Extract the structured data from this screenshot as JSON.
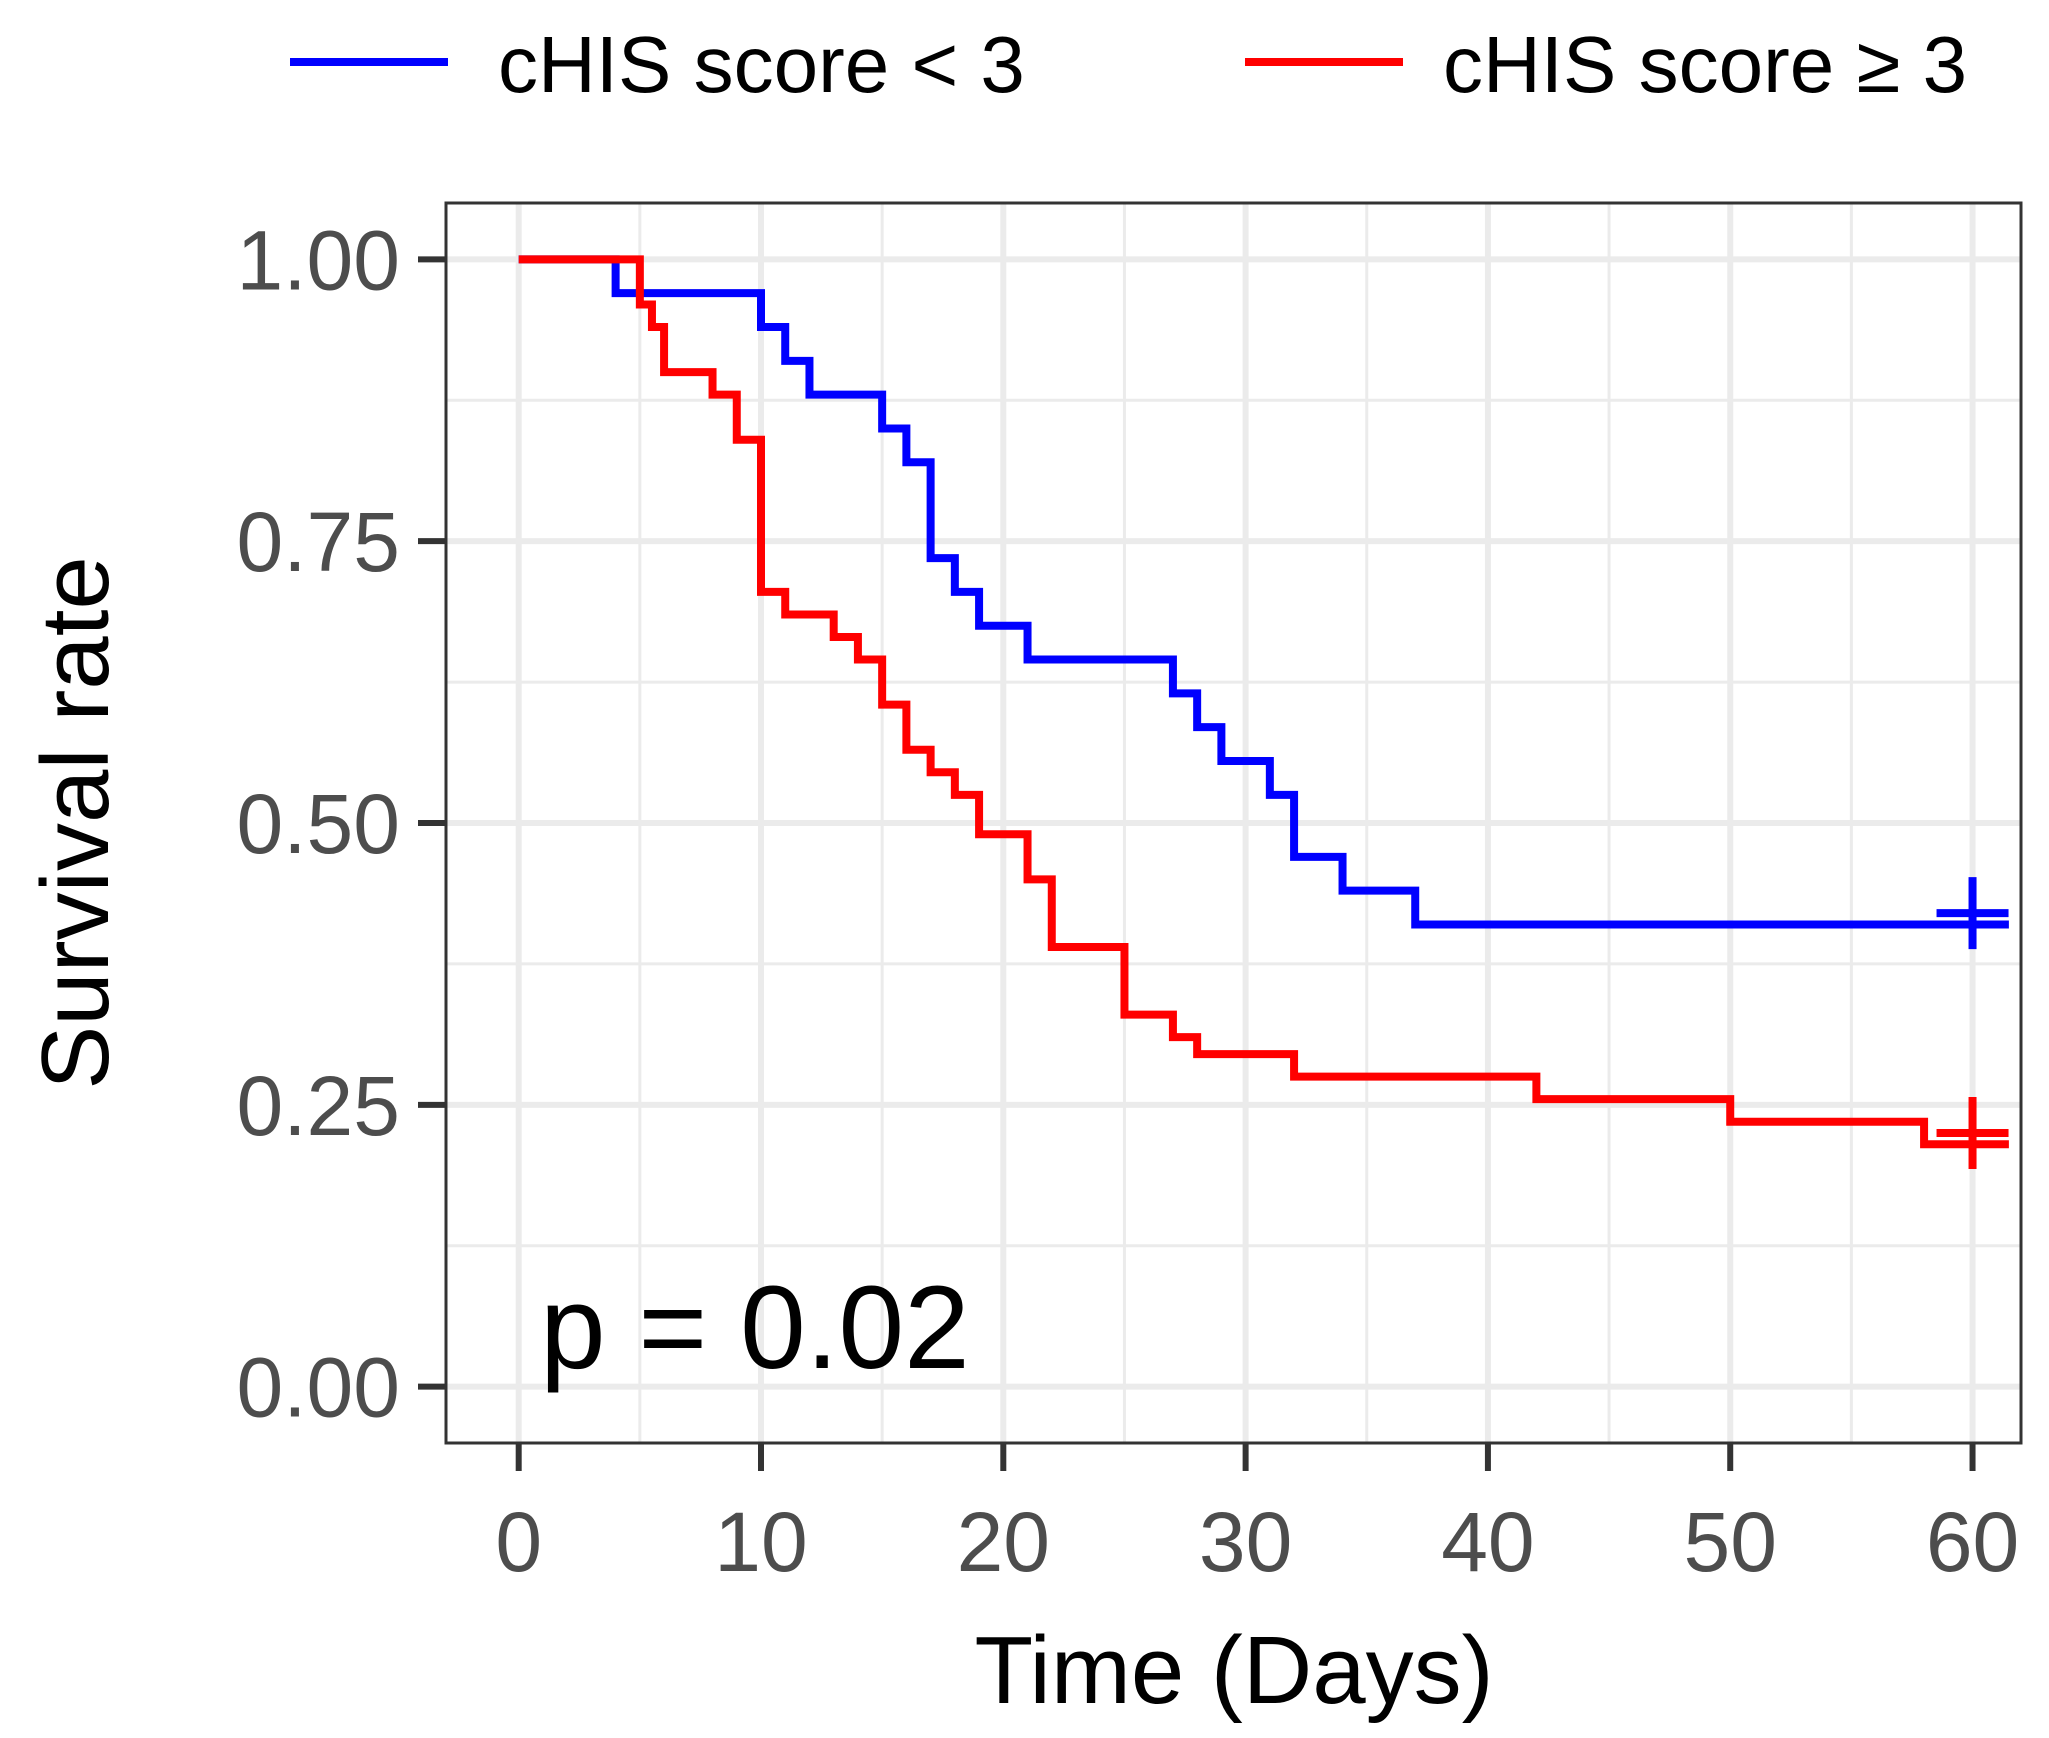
{
  "chart_data": {
    "type": "line",
    "subtype": "kaplan-meier step curve",
    "title": "",
    "xlabel": "Time (Days)",
    "ylabel": "Survival rate",
    "xlim": [
      -3,
      62
    ],
    "ylim": [
      -0.05,
      1.05
    ],
    "x_ticks": [
      0,
      10,
      20,
      30,
      40,
      50,
      60
    ],
    "x_tick_labels": [
      "0",
      "10",
      "20",
      "30",
      "40",
      "50",
      "60"
    ],
    "y_ticks": [
      0,
      0.25,
      0.5,
      0.75,
      1.0
    ],
    "y_tick_labels": [
      "0.00",
      "0.25",
      "0.50",
      "0.75",
      "1.00"
    ],
    "grid": true,
    "legend_position": "top",
    "annotation": "p = 0.02",
    "series": [
      {
        "name": "cHIS score < 3",
        "color": "#0000ff",
        "censor_marks": [
          {
            "x": 60,
            "y": 0.42
          }
        ],
        "steps": [
          {
            "x": 0,
            "y": 1.0
          },
          {
            "x": 4,
            "y": 0.97
          },
          {
            "x": 10,
            "y": 0.94
          },
          {
            "x": 11,
            "y": 0.91
          },
          {
            "x": 12,
            "y": 0.88
          },
          {
            "x": 15,
            "y": 0.85
          },
          {
            "x": 16,
            "y": 0.82
          },
          {
            "x": 17,
            "y": 0.735
          },
          {
            "x": 18,
            "y": 0.705
          },
          {
            "x": 19,
            "y": 0.675
          },
          {
            "x": 21,
            "y": 0.645
          },
          {
            "x": 27,
            "y": 0.615
          },
          {
            "x": 28,
            "y": 0.585
          },
          {
            "x": 29,
            "y": 0.555
          },
          {
            "x": 31,
            "y": 0.525
          },
          {
            "x": 32,
            "y": 0.47
          },
          {
            "x": 34,
            "y": 0.44
          },
          {
            "x": 37,
            "y": 0.41
          },
          {
            "x": 61.5,
            "y": 0.41
          }
        ]
      },
      {
        "name": "cHIS score ≥ 3",
        "color": "#ff0000",
        "censor_marks": [
          {
            "x": 60,
            "y": 0.225
          }
        ],
        "steps": [
          {
            "x": 0,
            "y": 1.0
          },
          {
            "x": 5,
            "y": 0.96
          },
          {
            "x": 5.5,
            "y": 0.94
          },
          {
            "x": 6,
            "y": 0.9
          },
          {
            "x": 8,
            "y": 0.88
          },
          {
            "x": 9,
            "y": 0.84
          },
          {
            "x": 10,
            "y": 0.705
          },
          {
            "x": 11,
            "y": 0.685
          },
          {
            "x": 13,
            "y": 0.665
          },
          {
            "x": 14,
            "y": 0.645
          },
          {
            "x": 15,
            "y": 0.605
          },
          {
            "x": 16,
            "y": 0.565
          },
          {
            "x": 17,
            "y": 0.545
          },
          {
            "x": 18,
            "y": 0.525
          },
          {
            "x": 19,
            "y": 0.49
          },
          {
            "x": 21,
            "y": 0.45
          },
          {
            "x": 22,
            "y": 0.39
          },
          {
            "x": 25,
            "y": 0.33
          },
          {
            "x": 27,
            "y": 0.31
          },
          {
            "x": 28,
            "y": 0.295
          },
          {
            "x": 32,
            "y": 0.275
          },
          {
            "x": 42,
            "y": 0.255
          },
          {
            "x": 50,
            "y": 0.235
          },
          {
            "x": 58,
            "y": 0.215
          },
          {
            "x": 61.5,
            "y": 0.215
          }
        ]
      }
    ]
  }
}
